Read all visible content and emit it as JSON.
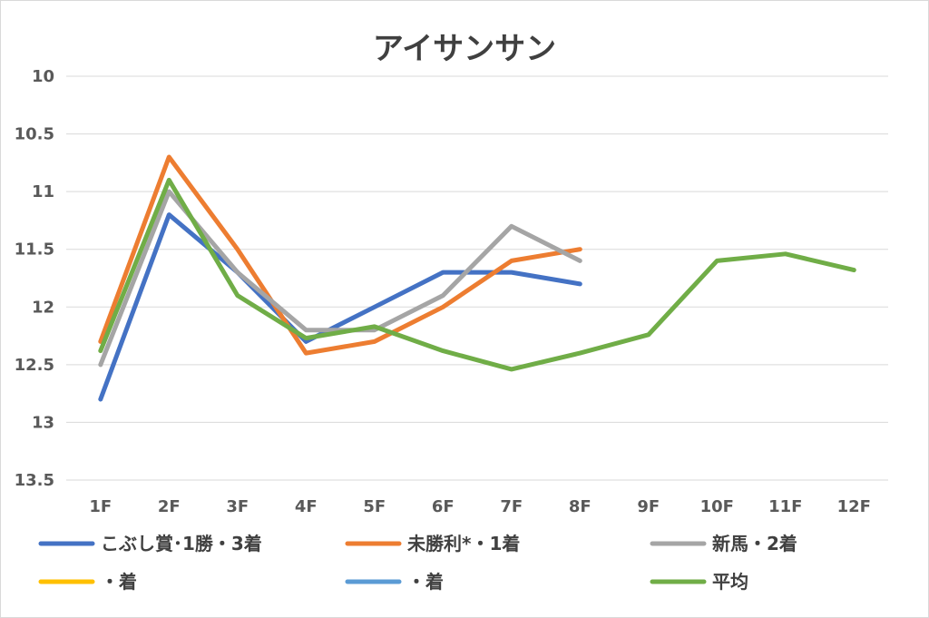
{
  "chart_data": {
    "type": "line",
    "title": "アイサンサン",
    "xlabel": "",
    "ylabel": "",
    "categories": [
      "1F",
      "2F",
      "3F",
      "4F",
      "5F",
      "6F",
      "7F",
      "8F",
      "9F",
      "10F",
      "11F",
      "12F"
    ],
    "y_axis": {
      "reversed": true,
      "min": 10,
      "max": 13.5,
      "ticks": [
        10,
        10.5,
        11,
        11.5,
        12,
        12.5,
        13,
        13.5
      ],
      "tick_labels": [
        "10",
        "10.5",
        "11",
        "11.5",
        "12",
        "12.5",
        "13",
        "13.5"
      ]
    },
    "grid": true,
    "legend_position": "bottom",
    "series": [
      {
        "name": "こぶし賞･1勝・3着",
        "color": "#4472c4",
        "values": [
          12.8,
          11.2,
          11.7,
          12.3,
          12.0,
          11.7,
          11.7,
          11.8,
          null,
          null,
          null,
          null
        ]
      },
      {
        "name": "未勝利*・1着",
        "color": "#ed7d31",
        "values": [
          12.3,
          10.7,
          11.5,
          12.4,
          12.3,
          12.0,
          11.6,
          11.5,
          null,
          null,
          null,
          null
        ]
      },
      {
        "name": "新馬・2着",
        "color": "#a5a5a5",
        "values": [
          12.5,
          11.0,
          11.7,
          12.2,
          12.2,
          11.9,
          11.3,
          11.6,
          null,
          null,
          null,
          null
        ]
      },
      {
        "name": "・着",
        "color": "#ffc000",
        "values": [
          null,
          null,
          null,
          null,
          null,
          null,
          null,
          null,
          null,
          null,
          null,
          null
        ]
      },
      {
        "name": "・着",
        "color": "#5b9bd5",
        "values": [
          null,
          null,
          null,
          null,
          null,
          null,
          null,
          null,
          null,
          null,
          null,
          null
        ]
      },
      {
        "name": "平均",
        "color": "#70ad47",
        "values": [
          12.38,
          10.9,
          11.9,
          12.27,
          12.17,
          12.38,
          12.54,
          12.4,
          12.24,
          11.6,
          11.54,
          11.68
        ]
      }
    ]
  }
}
